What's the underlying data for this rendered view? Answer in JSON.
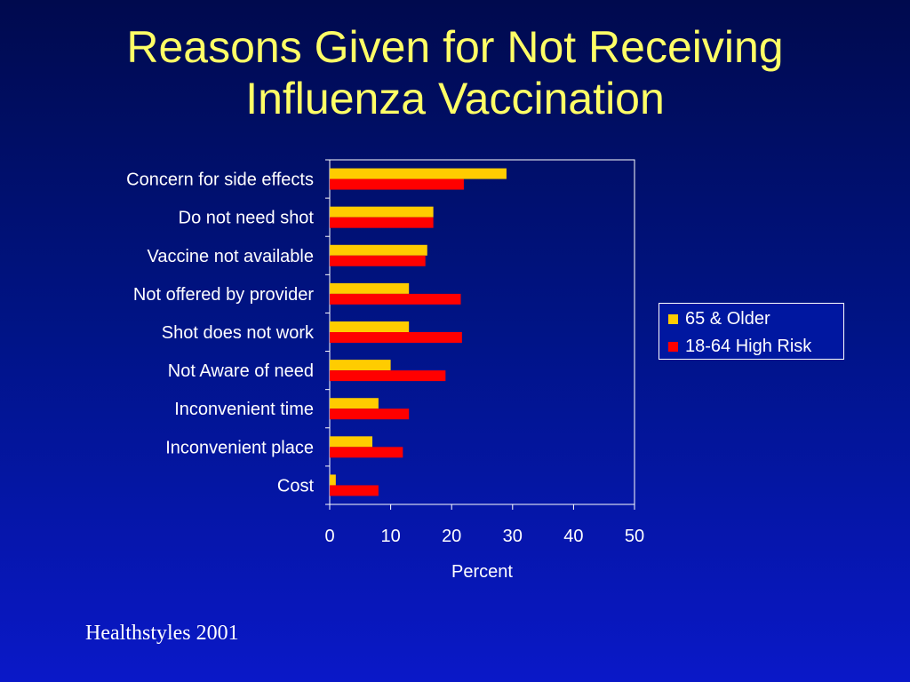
{
  "title_lines": [
    "Reasons Given for Not Receiving",
    "Influenza Vaccination"
  ],
  "source": "Healthstyles 2001",
  "colors": {
    "series_65_older": "#ffcc00",
    "series_18_64": "#ff0000",
    "axis": "#ffffff",
    "text": "#ffffff",
    "title": "#ffff66"
  },
  "chart_data": {
    "type": "bar",
    "orientation": "horizontal",
    "categories": [
      "Concern for side effects",
      "Do not need shot",
      "Vaccine not available",
      "Not offered by provider",
      "Shot does not work",
      "Not Aware of need",
      "Inconvenient time",
      "Inconvenient place",
      "Cost"
    ],
    "series": [
      {
        "name": "65 & Older",
        "values": [
          29,
          17,
          16,
          13,
          13,
          10,
          8,
          7,
          1
        ]
      },
      {
        "name": "18-64 High Risk",
        "values": [
          22,
          17,
          15.7,
          21.5,
          21.7,
          19,
          13,
          12,
          8
        ]
      }
    ],
    "xlabel": "Percent",
    "ylabel": "",
    "xlim": [
      0,
      50
    ],
    "xticks": [
      "0",
      "10",
      "20",
      "30",
      "40",
      "50"
    ],
    "legend_position": "right",
    "grid": false
  }
}
